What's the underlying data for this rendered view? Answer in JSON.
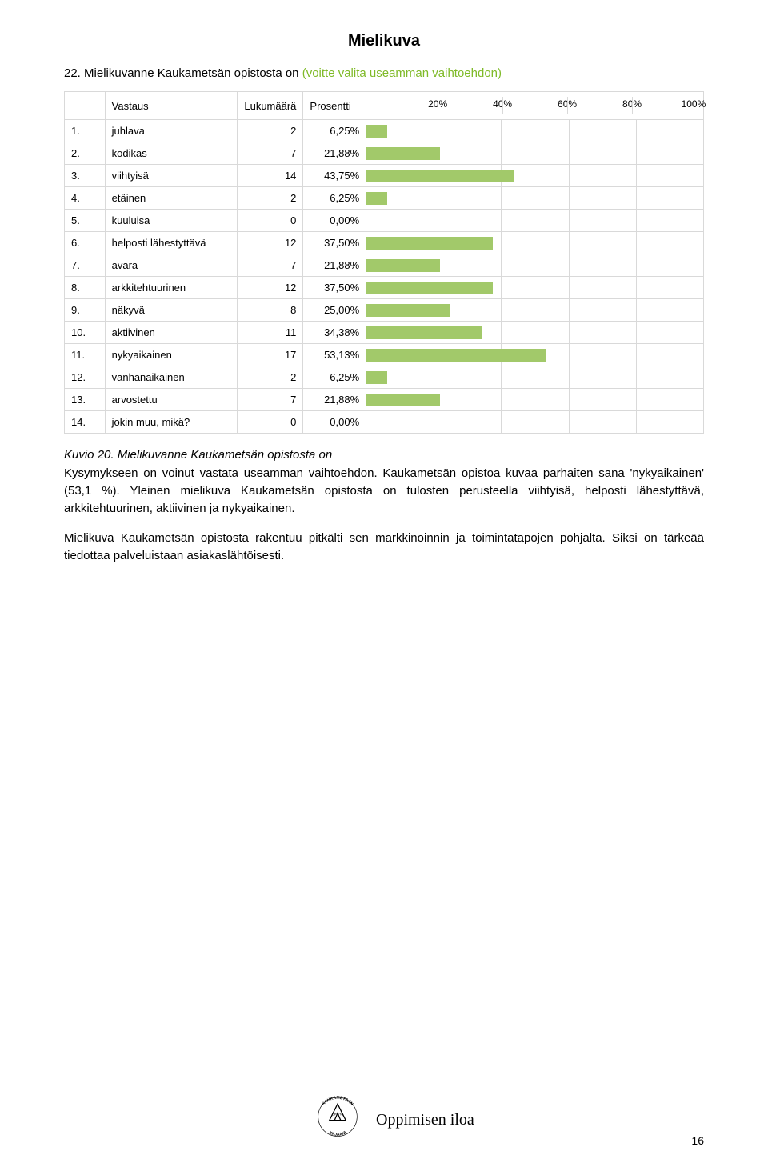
{
  "title": "Mielikuva",
  "subtitle": {
    "number": "22.",
    "text": "Mielikuvanne Kaukametsän opistosta on",
    "paren": "(voitte valita useamman vaihtoehdon)",
    "paren_color": "#7fba28"
  },
  "table": {
    "headers": {
      "answer": "Vastaus",
      "count": "Lukumäärä",
      "percent": "Prosentti"
    },
    "ticks": [
      "20%",
      "40%",
      "60%",
      "80%",
      "100%"
    ],
    "tick_positions_pct": [
      20,
      40,
      60,
      80,
      100
    ],
    "bar_color": "#a2c96a",
    "grid_color": "#d9d9d9",
    "rows": [
      {
        "idx": "1.",
        "label": "juhlava",
        "count": "2",
        "pct": "6,25%",
        "value": 6.25
      },
      {
        "idx": "2.",
        "label": "kodikas",
        "count": "7",
        "pct": "21,88%",
        "value": 21.88
      },
      {
        "idx": "3.",
        "label": "viihtyisä",
        "count": "14",
        "pct": "43,75%",
        "value": 43.75
      },
      {
        "idx": "4.",
        "label": "etäinen",
        "count": "2",
        "pct": "6,25%",
        "value": 6.25
      },
      {
        "idx": "5.",
        "label": "kuuluisa",
        "count": "0",
        "pct": "0,00%",
        "value": 0.0
      },
      {
        "idx": "6.",
        "label": "helposti lähestyttävä",
        "count": "12",
        "pct": "37,50%",
        "value": 37.5
      },
      {
        "idx": "7.",
        "label": "avara",
        "count": "7",
        "pct": "21,88%",
        "value": 21.88
      },
      {
        "idx": "8.",
        "label": "arkkitehtuurinen",
        "count": "12",
        "pct": "37,50%",
        "value": 37.5
      },
      {
        "idx": "9.",
        "label": "näkyvä",
        "count": "8",
        "pct": "25,00%",
        "value": 25.0
      },
      {
        "idx": "10.",
        "label": "aktiivinen",
        "count": "11",
        "pct": "34,38%",
        "value": 34.38
      },
      {
        "idx": "11.",
        "label": "nykyaikainen",
        "count": "17",
        "pct": "53,13%",
        "value": 53.13
      },
      {
        "idx": "12.",
        "label": "vanhanaikainen",
        "count": "2",
        "pct": "6,25%",
        "value": 6.25
      },
      {
        "idx": "13.",
        "label": "arvostettu",
        "count": "7",
        "pct": "21,88%",
        "value": 21.88
      },
      {
        "idx": "14.",
        "label": "jokin muu, mikä?",
        "count": "0",
        "pct": "0,00%",
        "value": 0.0
      }
    ]
  },
  "caption": "Kuvio 20. Mielikuvanne Kaukametsän opistosta on",
  "para1": "Kysymykseen on voinut vastata useamman vaihtoehdon. Kaukametsän opistoa kuvaa parhaiten sana 'nykyaikainen' (53,1 %). Yleinen mielikuva Kaukametsän opistosta on tulosten perusteella viihtyisä, helposti lähestyttävä, arkkitehtuurinen, aktiivinen ja nykyaikainen.",
  "para2": "Mielikuva Kaukametsän opistosta rakentuu pitkälti sen markkinoinnin ja toimintatapojen pohjalta. Siksi on tärkeää tiedottaa palveluistaan asiakaslähtöisesti.",
  "footer": {
    "slogan": "Oppimisen iloa",
    "page": "16",
    "logo_text_top": "KAUKAMETSÄN",
    "logo_text_mid": "OPISTO",
    "logo_text_bottom": "KAJAANI"
  }
}
